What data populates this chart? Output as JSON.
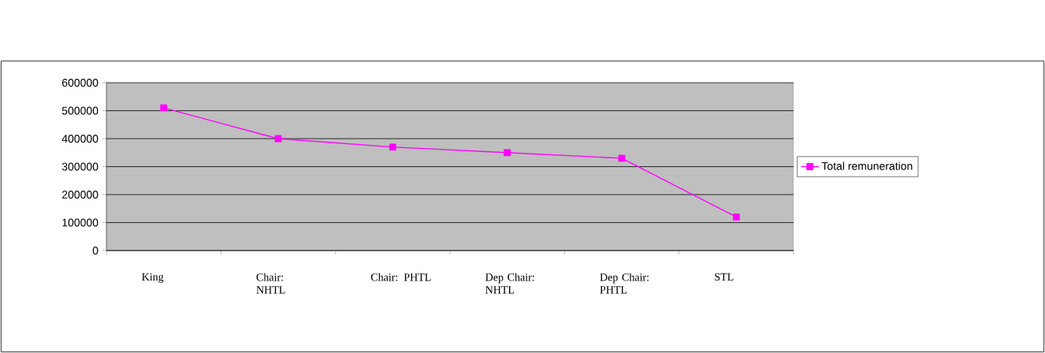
{
  "chart_data": {
    "type": "line",
    "categories": [
      "King",
      "Chair: NHTL",
      "Chair: PHTL",
      "Dep Chair: NHTL",
      "Dep Chair: PHTL",
      "STL"
    ],
    "series": [
      {
        "name": "Total remuneration",
        "color": "#ff00ff",
        "values": [
          510000,
          400000,
          370000,
          350000,
          330000,
          120000
        ]
      }
    ],
    "ylim": [
      0,
      600000
    ],
    "yticks": [
      0,
      100000,
      200000,
      300000,
      400000,
      500000,
      600000
    ],
    "grid": "y",
    "legend": "right",
    "marker": "square",
    "line_style": "solid"
  }
}
